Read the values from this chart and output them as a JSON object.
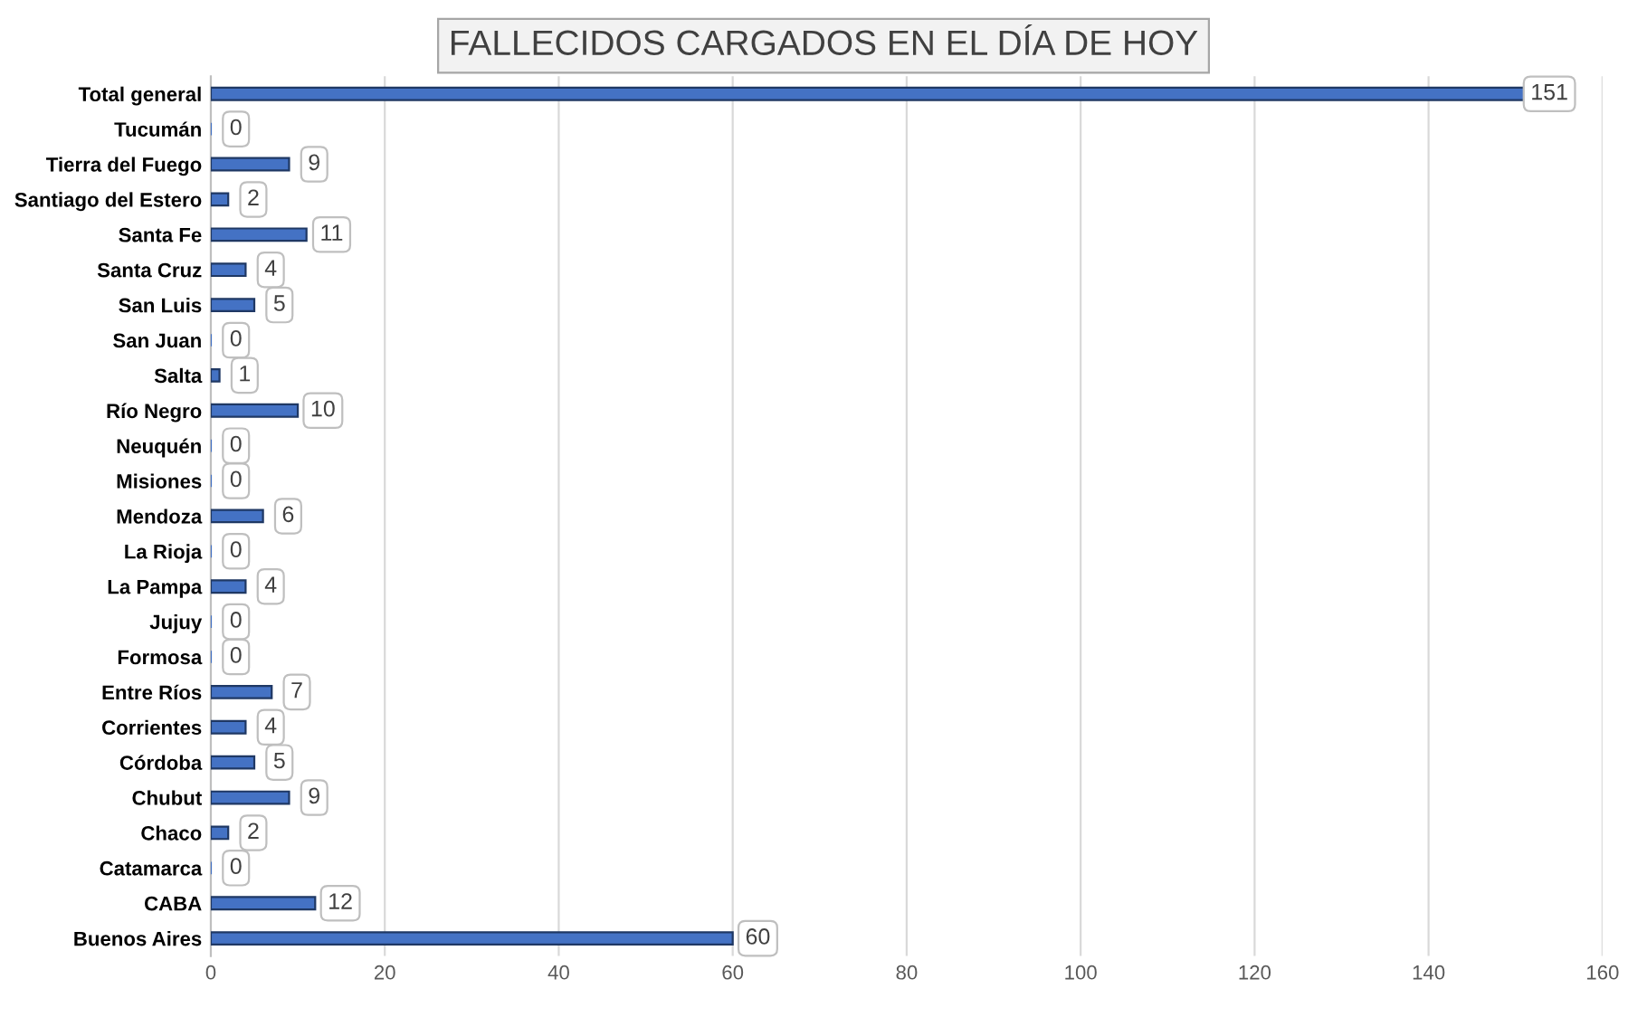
{
  "chart_data": {
    "type": "bar",
    "orientation": "horizontal",
    "title": "FALLECIDOS CARGADOS EN EL DÍA DE HOY",
    "categories": [
      "Total general",
      "Tucumán",
      "Tierra del Fuego",
      "Santiago del Estero",
      "Santa Fe",
      "Santa Cruz",
      "San Luis",
      "San Juan",
      "Salta",
      "Río Negro",
      "Neuquén",
      "Misiones",
      "Mendoza",
      "La Rioja",
      "La Pampa",
      "Jujuy",
      "Formosa",
      "Entre Ríos",
      "Corrientes",
      "Córdoba",
      "Chubut",
      "Chaco",
      "Catamarca",
      "CABA",
      "Buenos Aires"
    ],
    "values": [
      151,
      0,
      9,
      2,
      11,
      4,
      5,
      0,
      1,
      10,
      0,
      0,
      6,
      0,
      4,
      0,
      0,
      7,
      4,
      5,
      9,
      2,
      0,
      12,
      60
    ],
    "color": "#4472c4",
    "xlim": [
      0,
      160
    ],
    "xticks": [
      0,
      20,
      40,
      60,
      80,
      100,
      120,
      140,
      160
    ],
    "grid": "x",
    "data_labels": true
  }
}
